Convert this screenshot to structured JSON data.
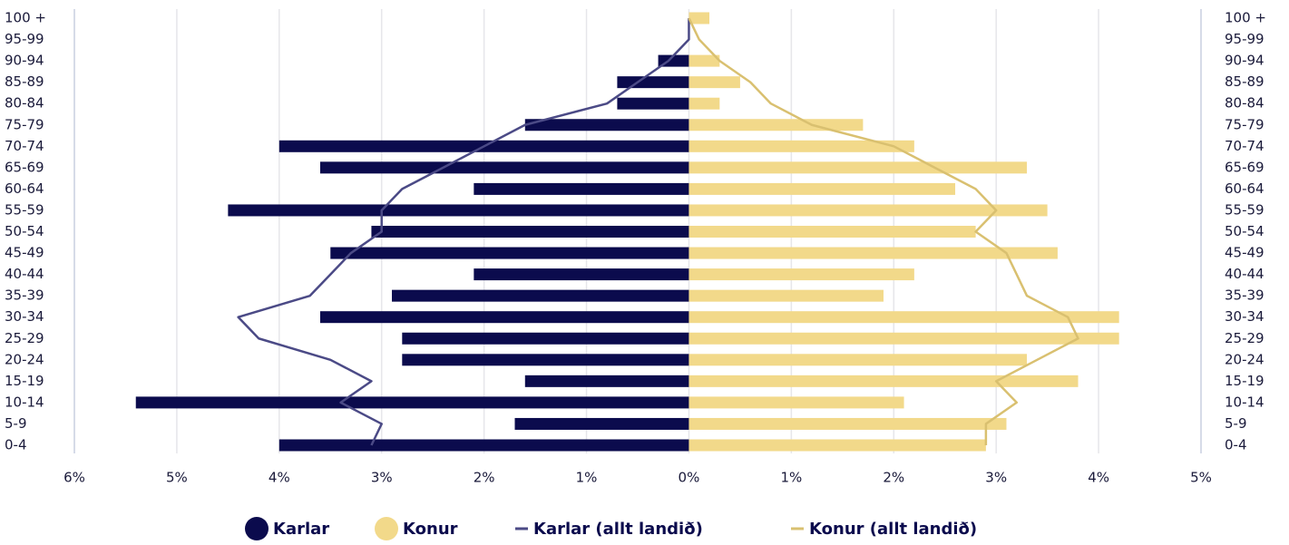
{
  "chart_data": {
    "type": "pyramid",
    "categories": [
      "0-4",
      "5-9",
      "10-14",
      "15-19",
      "20-24",
      "25-29",
      "30-34",
      "35-39",
      "40-44",
      "45-49",
      "50-54",
      "55-59",
      "60-64",
      "65-69",
      "70-74",
      "75-79",
      "80-84",
      "85-89",
      "90-94",
      "95-99",
      "100 +"
    ],
    "series": [
      {
        "name": "Karlar",
        "type": "bar",
        "side": "left",
        "color": "#0b0b4d",
        "values": [
          4.0,
          1.7,
          5.4,
          1.6,
          2.8,
          2.8,
          3.6,
          2.9,
          2.1,
          3.5,
          3.1,
          4.5,
          2.1,
          3.6,
          4.0,
          1.6,
          0.7,
          0.7,
          0.3,
          0,
          0
        ]
      },
      {
        "name": "Konur",
        "type": "bar",
        "side": "right",
        "color": "#f2d98a",
        "values": [
          2.9,
          3.1,
          2.1,
          3.8,
          3.3,
          4.2,
          4.2,
          1.9,
          2.2,
          3.6,
          2.8,
          3.5,
          2.6,
          3.3,
          2.2,
          1.7,
          0.3,
          0.5,
          0.3,
          0,
          0.2
        ]
      },
      {
        "name": "Karlar (allt landið)",
        "type": "line",
        "side": "left",
        "color": "#4b4a86",
        "values": [
          3.1,
          3.0,
          3.4,
          3.1,
          3.5,
          4.2,
          4.4,
          3.7,
          3.5,
          3.3,
          3.0,
          3.0,
          2.8,
          2.4,
          2.0,
          1.6,
          0.8,
          0.5,
          0.2,
          0,
          0
        ]
      },
      {
        "name": "Konur (allt landið)",
        "type": "line",
        "side": "right",
        "color": "#d9c070",
        "values": [
          2.9,
          2.9,
          3.2,
          3.0,
          3.4,
          3.8,
          3.7,
          3.3,
          3.2,
          3.1,
          2.8,
          3.0,
          2.8,
          2.4,
          2.0,
          1.2,
          0.8,
          0.6,
          0.3,
          0.1,
          0
        ]
      }
    ],
    "xlim": [
      -6,
      5
    ],
    "xticks": [
      {
        "value": -6,
        "label": "6%"
      },
      {
        "value": -5,
        "label": "5%"
      },
      {
        "value": -4,
        "label": "4%"
      },
      {
        "value": -3,
        "label": "3%"
      },
      {
        "value": -2,
        "label": "2%"
      },
      {
        "value": -1,
        "label": "1%"
      },
      {
        "value": 0,
        "label": "0%"
      },
      {
        "value": 1,
        "label": "1%"
      },
      {
        "value": 2,
        "label": "2%"
      },
      {
        "value": 3,
        "label": "3%"
      },
      {
        "value": 4,
        "label": "4%"
      },
      {
        "value": 5,
        "label": "5%"
      }
    ],
    "grid": true
  }
}
